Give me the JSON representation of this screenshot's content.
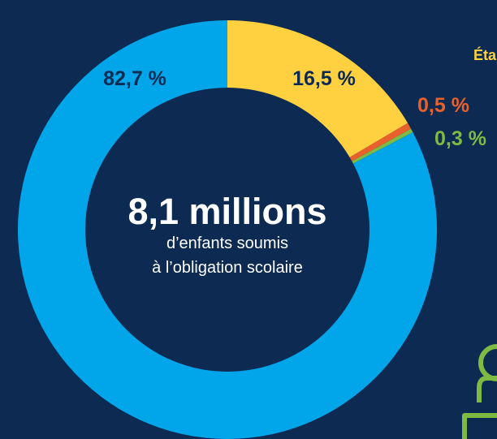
{
  "colors": {
    "background": "#0d2a52",
    "public": "#00a6e9",
    "prive": "#ffd040",
    "orange": "#e8612c",
    "green": "#7dbb42"
  },
  "chart_data": {
    "type": "pie",
    "title": "8,1 millions",
    "subtitle_line1": "d’enfants soumis",
    "subtitle_line2": "à l’obligation scolaire",
    "side_label": "Éta",
    "slices": [
      {
        "label": "16,5 %",
        "value": 16.5,
        "color": "#ffd040"
      },
      {
        "label": "0,5 %",
        "value": 0.5,
        "color": "#e8612c"
      },
      {
        "label": "0,3 %",
        "value": 0.3,
        "color": "#7dbb42"
      },
      {
        "label": "82,7 %",
        "value": 82.7,
        "color": "#00a6e9"
      }
    ]
  },
  "decoration": {
    "icon": "person-icon"
  }
}
